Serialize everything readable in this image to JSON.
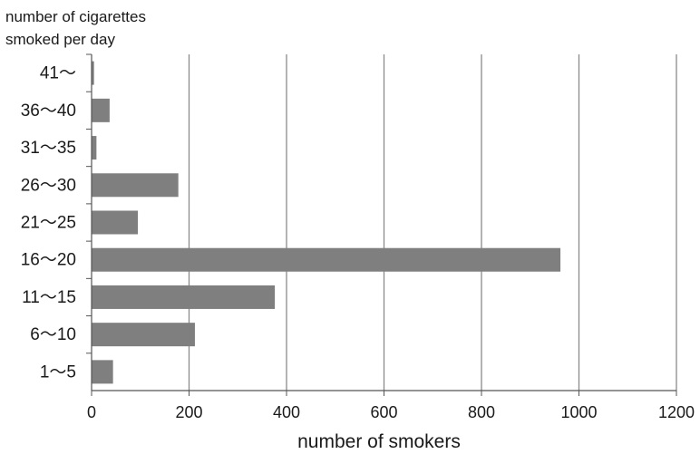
{
  "chart_data": {
    "type": "bar",
    "orientation": "horizontal",
    "ylabel_lines": [
      "number of cigarettes",
      "smoked per day"
    ],
    "xlabel": "number of smokers",
    "categories": [
      "41～",
      "36～40",
      "31～35",
      "26～30",
      "21～25",
      "16～20",
      "11～15",
      "6～10",
      "1～5"
    ],
    "values": [
      5,
      37,
      10,
      178,
      95,
      962,
      376,
      212,
      44
    ],
    "xlim": [
      0,
      1200
    ],
    "xticks": [
      0,
      200,
      400,
      600,
      800,
      1000,
      1200
    ],
    "grid": "vertical",
    "legend": "none",
    "colors": {
      "bar": "#7f7f7f",
      "grid": "#8a8a8a",
      "axis": "#555555"
    }
  }
}
